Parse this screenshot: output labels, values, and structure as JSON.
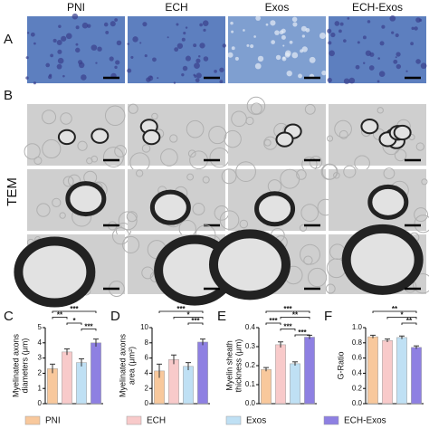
{
  "panel_labels": [
    "A",
    "B",
    "C",
    "D",
    "E",
    "F"
  ],
  "image_columns": [
    "PNI",
    "ECH",
    "Exos",
    "ECH-Exos"
  ],
  "tem_label": "TEM",
  "legend": [
    {
      "name": "PNI",
      "color": "#f8c89c"
    },
    {
      "name": "ECH",
      "color": "#f8caca"
    },
    {
      "name": "Exos",
      "color": "#bfe0f4"
    },
    {
      "name": "ECH-Exos",
      "color": "#8e80e2"
    }
  ],
  "chart_data": [
    {
      "type": "bar",
      "y_label": [
        "Myelinated axons",
        "diameters (μm)"
      ],
      "values": [
        2.3,
        3.4,
        2.7,
        4.0
      ],
      "errors": [
        0.3,
        0.2,
        0.25,
        0.25
      ],
      "ylim": [
        0,
        5
      ],
      "yticks": [
        0,
        1,
        2,
        3,
        4,
        5
      ],
      "significance": [
        {
          "pair": [
            0,
            3
          ],
          "label": "***"
        },
        {
          "pair": [
            0,
            1
          ],
          "label": "**"
        },
        {
          "pair": [
            1,
            2
          ],
          "label": "*"
        },
        {
          "pair": [
            2,
            3
          ],
          "label": "***"
        }
      ]
    },
    {
      "type": "bar",
      "y_label": [
        "Myelinated axons",
        "area (μm²)"
      ],
      "values": [
        4.3,
        5.8,
        4.9,
        8.1
      ],
      "errors": [
        0.9,
        0.6,
        0.5,
        0.4
      ],
      "ylim": [
        0,
        10
      ],
      "yticks": [
        0,
        2,
        4,
        6,
        8,
        10
      ],
      "significance": [
        {
          "pair": [
            0,
            3
          ],
          "label": "***"
        },
        {
          "pair": [
            1,
            3
          ],
          "label": "*"
        },
        {
          "pair": [
            2,
            3
          ],
          "label": "***"
        }
      ]
    },
    {
      "type": "bar",
      "y_label": [
        "Myelin sheath",
        "thickness (μm)"
      ],
      "values": [
        0.18,
        0.31,
        0.21,
        0.35
      ],
      "errors": [
        0.01,
        0.015,
        0.01,
        0.01
      ],
      "ylim": [
        0,
        0.4
      ],
      "yticks": [
        {
          "value": 0,
          "label": "0.0"
        },
        0.1,
        0.2,
        0.3,
        0.4
      ],
      "significance": [
        {
          "pair": [
            0,
            3
          ],
          "label": "***"
        },
        {
          "pair": [
            1,
            3
          ],
          "label": "**"
        },
        {
          "pair": [
            0,
            1
          ],
          "label": "***"
        },
        {
          "pair": [
            1,
            2
          ],
          "label": "***"
        },
        {
          "pair": [
            2,
            3
          ],
          "label": "***"
        }
      ]
    },
    {
      "type": "bar",
      "y_label": [
        "G-Ratio"
      ],
      "values": [
        0.88,
        0.83,
        0.87,
        0.74
      ],
      "errors": [
        0.02,
        0.02,
        0.02,
        0.02
      ],
      "ylim": [
        0,
        1.0
      ],
      "yticks": [
        {
          "value": 0,
          "label": "0.0"
        },
        0.2,
        0.4,
        0.6,
        0.8,
        {
          "value": 1,
          "label": "1.0"
        }
      ],
      "significance": [
        {
          "pair": [
            0,
            3
          ],
          "label": "**"
        },
        {
          "pair": [
            1,
            3
          ],
          "label": "*"
        },
        {
          "pair": [
            2,
            3
          ],
          "label": "**"
        }
      ]
    }
  ]
}
